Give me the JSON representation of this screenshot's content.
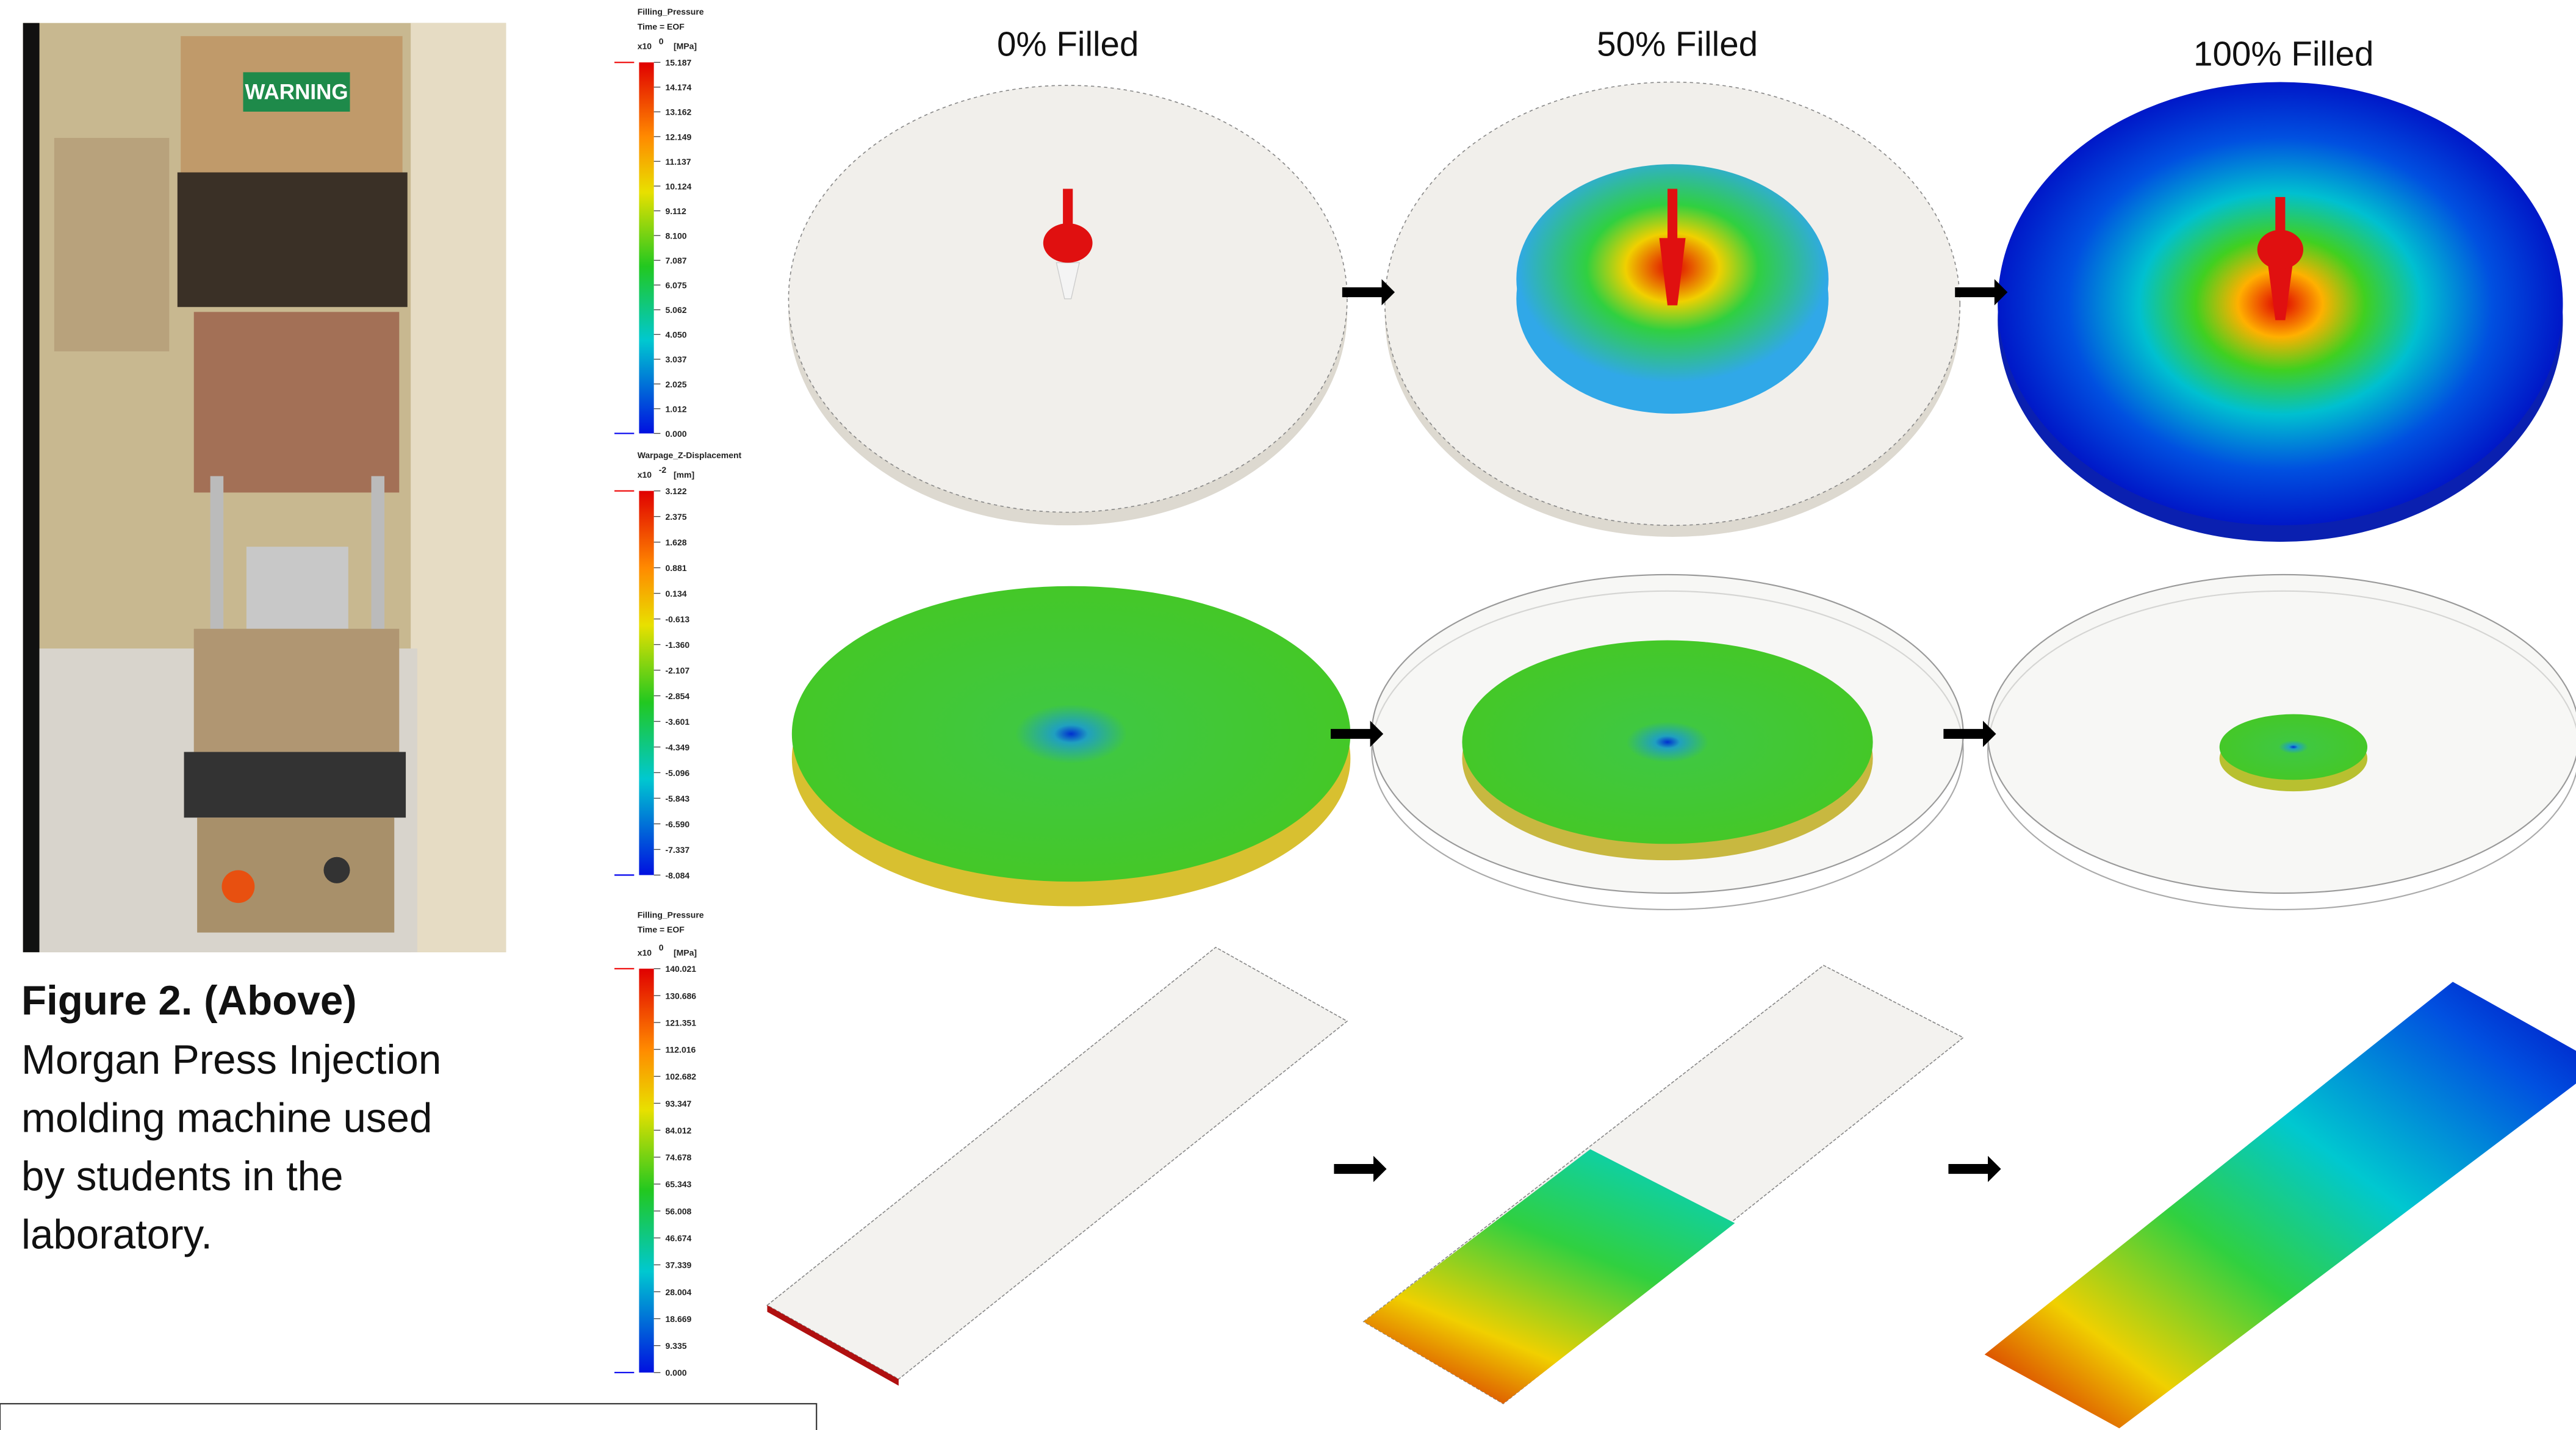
{
  "photo": {
    "sign": "WARNING"
  },
  "caption": {
    "heading": "Figure 2.  (Above)",
    "lines": [
      "Morgan Press Injection",
      "molding machine used",
      "by students in the",
      "laboratory."
    ]
  },
  "column_labels": [
    "0% Filled",
    "50% Filled",
    "100% Filled"
  ],
  "legends": [
    {
      "title": [
        "Filling_Pressure",
        "Time = EOF"
      ],
      "multiplier": "x10",
      "exponent": "0",
      "unit": "[MPa]",
      "values": [
        "15.187",
        "14.174",
        "13.162",
        "12.149",
        "11.137",
        "10.124",
        "9.112",
        "8.100",
        "7.087",
        "6.075",
        "5.062",
        "4.050",
        "3.037",
        "2.025",
        "1.012",
        "0.000"
      ]
    },
    {
      "title": [
        "Warpage_Z-Displacement"
      ],
      "multiplier": "x10",
      "exponent": "-2",
      "unit": "[mm]",
      "values": [
        "3.122",
        "2.375",
        "1.628",
        "0.881",
        "0.134",
        "-0.613",
        "-1.360",
        "-2.107",
        "-2.854",
        "-3.601",
        "-4.349",
        "-5.096",
        "-5.843",
        "-6.590",
        "-7.337",
        "-8.084"
      ]
    },
    {
      "title": [
        "Filling_Pressure",
        "Time = EOF"
      ],
      "multiplier": "x10",
      "exponent": "0",
      "unit": "[MPa]",
      "values": [
        "140.021",
        "130.686",
        "121.351",
        "112.016",
        "102.682",
        "93.347",
        "84.012",
        "74.678",
        "65.343",
        "56.008",
        "46.674",
        "37.339",
        "28.004",
        "18.669",
        "9.335",
        "0.000"
      ]
    }
  ]
}
